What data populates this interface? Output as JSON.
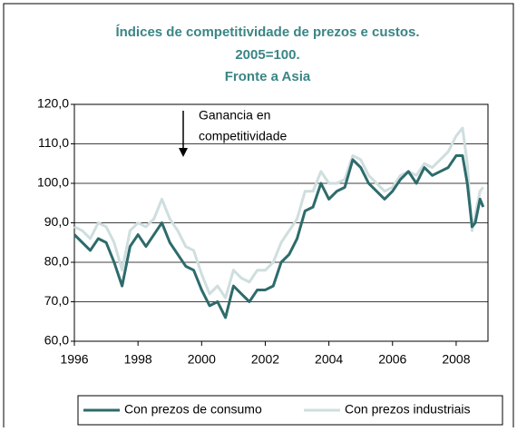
{
  "chart_data": {
    "type": "line",
    "title": [
      "Índices de competitividade de prezos e custos.",
      "2005=100.",
      "Fronte a Asia"
    ],
    "annotation": [
      "Ganancia en",
      "competitividade"
    ],
    "x": [
      1996.0,
      1996.25,
      1996.5,
      1996.75,
      1997.0,
      1997.25,
      1997.5,
      1997.75,
      1998.0,
      1998.25,
      1998.5,
      1998.75,
      1999.0,
      1999.25,
      1999.5,
      1999.75,
      2000.0,
      2000.25,
      2000.5,
      2000.75,
      2001.0,
      2001.25,
      2001.5,
      2001.75,
      2002.0,
      2002.25,
      2002.5,
      2002.75,
      2003.0,
      2003.25,
      2003.5,
      2003.75,
      2004.0,
      2004.25,
      2004.5,
      2004.75,
      2005.0,
      2005.25,
      2005.5,
      2005.75,
      2006.0,
      2006.25,
      2006.5,
      2006.75,
      2007.0,
      2007.25,
      2007.5,
      2007.75,
      2008.0,
      2008.2,
      2008.35,
      2008.5,
      2008.6,
      2008.75,
      2008.85
    ],
    "series": [
      {
        "name": "Con prezos de consumo",
        "color": "#2e6b6b",
        "values": [
          87,
          85,
          83,
          86,
          85,
          80,
          74,
          84,
          87,
          84,
          87,
          90,
          85,
          82,
          79,
          78,
          73,
          69,
          70,
          66,
          74,
          72,
          70,
          73,
          73,
          74,
          80,
          82,
          86,
          93,
          94,
          100,
          96,
          98,
          99,
          106,
          104,
          100,
          98,
          96,
          98,
          101,
          103,
          100,
          104,
          102,
          103,
          104,
          107,
          107,
          100,
          89,
          90,
          96,
          94
        ]
      },
      {
        "name": "Con prezos industriais",
        "color": "#cfdede",
        "values": [
          89,
          88,
          86,
          90,
          89,
          85,
          78,
          88,
          90,
          89,
          91,
          96,
          91,
          88,
          84,
          83,
          77,
          72,
          74,
          71,
          78,
          76,
          75,
          78,
          78,
          80,
          85,
          88,
          91,
          98,
          98,
          103,
          100,
          100,
          101,
          107,
          106,
          102,
          100,
          98,
          99,
          102,
          103,
          102,
          105,
          104,
          106,
          108,
          112,
          114,
          105,
          88,
          92,
          98,
          99
        ]
      }
    ],
    "xlim": [
      1996,
      2009
    ],
    "xticks": [
      1996,
      1998,
      2000,
      2002,
      2004,
      2006,
      2008
    ],
    "ylim": [
      60,
      120
    ],
    "yticks": [
      {
        "value": 60,
        "label": "60,0"
      },
      {
        "value": 70,
        "label": "70,0"
      },
      {
        "value": 80,
        "label": "80,0"
      },
      {
        "value": 90,
        "label": "90,0"
      },
      {
        "value": 100,
        "label": "100,0"
      },
      {
        "value": 110,
        "label": "110,0"
      },
      {
        "value": 120,
        "label": "120,0"
      }
    ],
    "grid": true,
    "legend": "bottom"
  }
}
